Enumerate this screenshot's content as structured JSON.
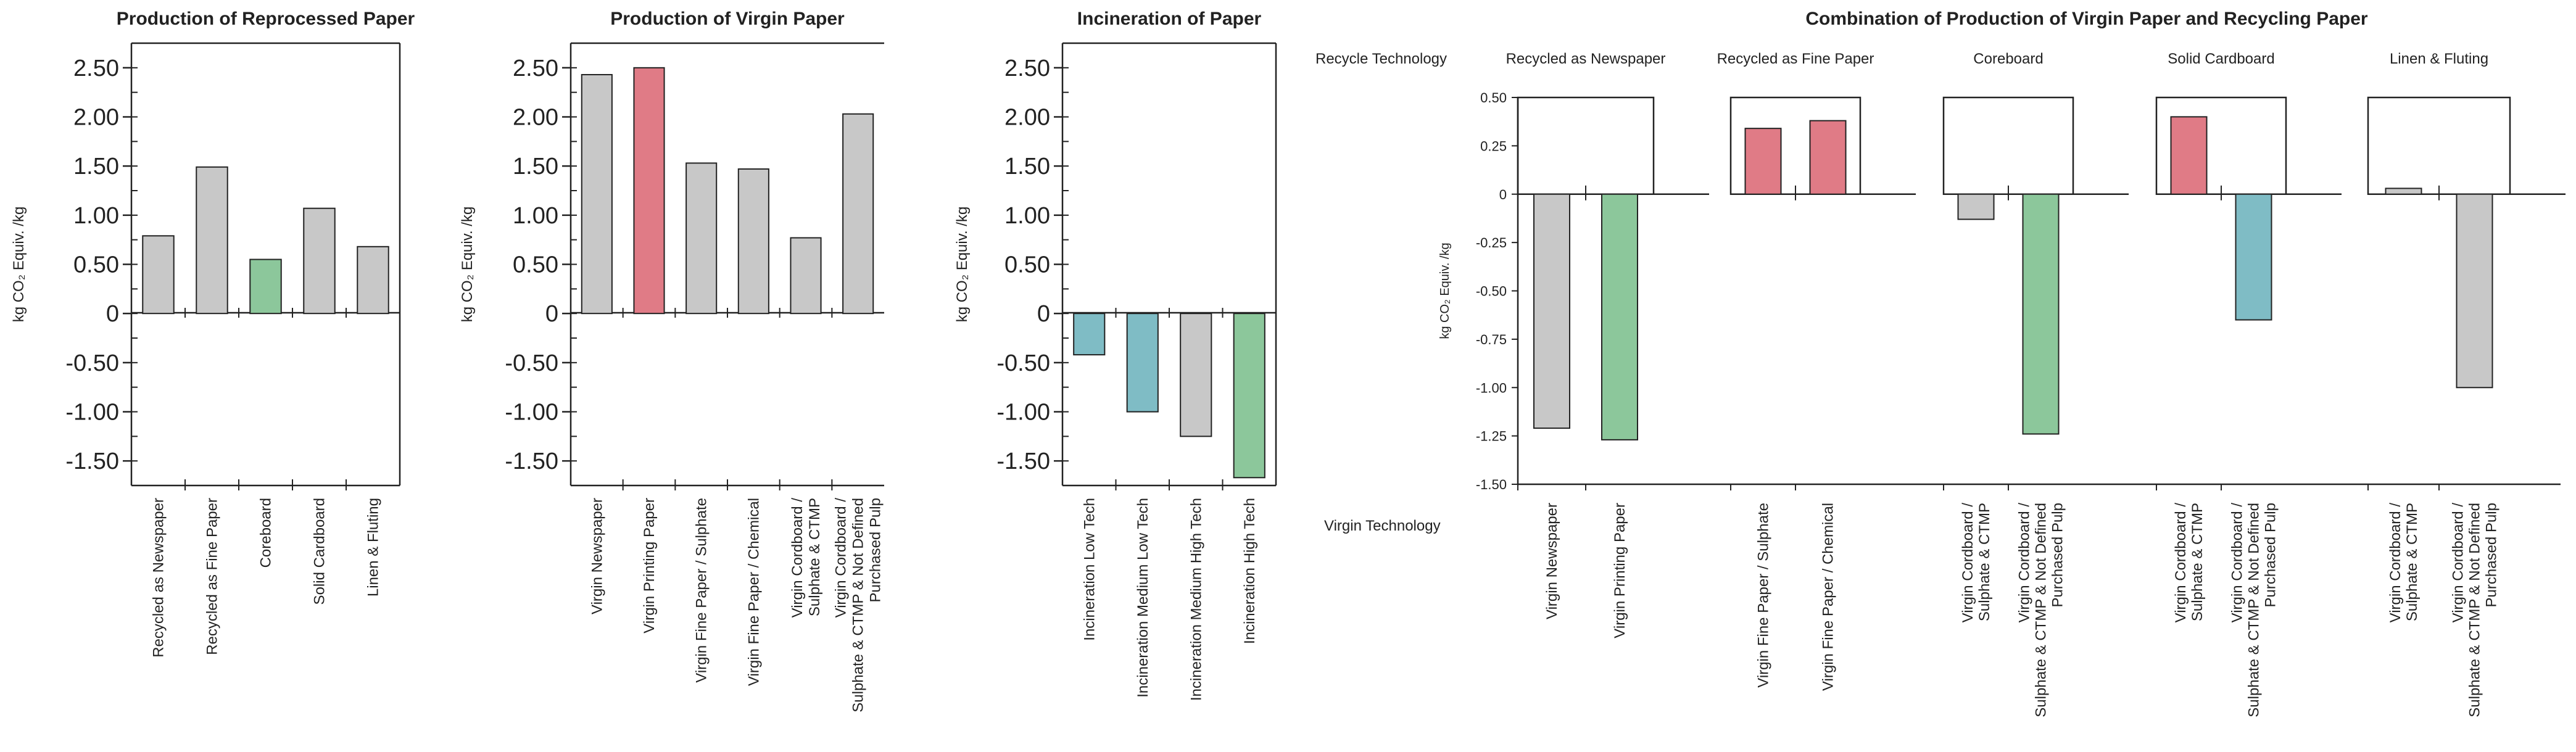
{
  "palette": {
    "grey": "#c8c8c8",
    "red": "#e07b86",
    "green": "#8cc79b",
    "blue": "#7fbcc5",
    "axis": "#222222"
  },
  "chart_data": [
    {
      "type": "bar",
      "title": "Production of Reprocessed Paper",
      "ylabel": "kg CO₂ Equiv. /kg",
      "ylim": [
        -1.75,
        2.75
      ],
      "yticks": [
        2.5,
        2.0,
        1.5,
        1.0,
        0.5,
        0,
        -0.5,
        -1.0,
        -1.5
      ],
      "ytick_labels": [
        "2.50",
        "2.00",
        "1.50",
        "1.00",
        "0.50",
        "0",
        "-0.50",
        "-1.00",
        "-1.50"
      ],
      "categories": [
        [
          "Recycled as Newspaper"
        ],
        [
          "Recycled as Fine Paper"
        ],
        [
          "Coreboard"
        ],
        [
          "Solid Cardboard"
        ],
        [
          "Linen & Fluting"
        ]
      ],
      "values": [
        0.79,
        1.49,
        0.55,
        1.07,
        0.68
      ],
      "colors": [
        "grey",
        "grey",
        "green",
        "grey",
        "grey"
      ]
    },
    {
      "type": "bar",
      "title": "Production of Virgin Paper",
      "ylabel": "kg CO₂ Equiv. /kg",
      "ylim": [
        -1.75,
        2.75
      ],
      "yticks": [
        2.5,
        2.0,
        1.5,
        1.0,
        0.5,
        0,
        -0.5,
        -1.0,
        -1.5
      ],
      "ytick_labels": [
        "2.50",
        "2.00",
        "1.50",
        "1.00",
        "0.50",
        "0",
        "-0.50",
        "-1.00",
        "-1.50"
      ],
      "categories": [
        [
          "Virgin Newspaper"
        ],
        [
          "Virgin Printing Paper"
        ],
        [
          "Virgin Fine Paper / Sulphate"
        ],
        [
          "Virgin Fine Paper / Chemical"
        ],
        [
          "Virgin Cordboard /",
          "Sulphate & CTMP"
        ],
        [
          "Virgin Cordboard /",
          "Sulphate & CTMP & Not Defined",
          "Purchased Pulp"
        ]
      ],
      "values": [
        2.43,
        2.5,
        1.53,
        1.47,
        0.77,
        2.03
      ],
      "colors": [
        "grey",
        "red",
        "grey",
        "grey",
        "grey",
        "grey"
      ]
    },
    {
      "type": "bar",
      "title": "Incineration of Paper",
      "ylabel": "kg CO₂ Equiv. /kg",
      "ylim": [
        -1.75,
        2.75
      ],
      "yticks": [
        2.5,
        2.0,
        1.5,
        1.0,
        0.5,
        0,
        -0.5,
        -1.0,
        -1.5
      ],
      "ytick_labels": [
        "2.50",
        "2.00",
        "1.50",
        "1.00",
        "0.50",
        "0",
        "-0.50",
        "-1.00",
        "-1.50"
      ],
      "categories": [
        [
          "Incineration Low Tech"
        ],
        [
          "Incineration Medium Low Tech"
        ],
        [
          "Incineration Medium High Tech"
        ],
        [
          "Incineration High Tech"
        ]
      ],
      "values": [
        -0.42,
        -1.0,
        -1.25,
        -1.67
      ],
      "colors": [
        "blue",
        "blue",
        "grey",
        "green"
      ]
    },
    {
      "type": "bar",
      "title": "Combination of Production of Virgin Paper and Recycling Paper",
      "ylabel": "kg CO₂ Equiv. /kg",
      "side_labels": {
        "top": "Recycle Technology",
        "bottom": "Virgin Technology"
      },
      "ylim": [
        -1.5,
        0.5
      ],
      "yticks": [
        0.5,
        0.25,
        0,
        -0.25,
        -0.5,
        -0.75,
        -1.0,
        -1.25,
        -1.5
      ],
      "ytick_labels": [
        "0.50",
        "0.25",
        "0",
        "-0.25",
        "-0.50",
        "-0.75",
        "-1.00",
        "-1.25",
        "-1.50"
      ],
      "groups": [
        {
          "name": "Recycled as Newspaper",
          "categories": [
            [
              "Virgin Newspaper"
            ],
            [
              "Virgin Printing Paper"
            ]
          ],
          "values": [
            -1.21,
            -1.27
          ],
          "colors": [
            "grey",
            "green"
          ]
        },
        {
          "name": "Recycled as Fine Paper",
          "categories": [
            [
              "Virgin Fine Paper / Sulphate"
            ],
            [
              "Virgin Fine Paper / Chemical"
            ]
          ],
          "values": [
            0.34,
            0.38
          ],
          "colors": [
            "red",
            "red"
          ]
        },
        {
          "name": "Coreboard",
          "categories": [
            [
              "Virgin Cordboard /",
              "Sulphate & CTMP"
            ],
            [
              "Virgin Cordboard /",
              "Sulphate & CTMP & Not Defined",
              "Purchased Pulp"
            ]
          ],
          "values": [
            -0.13,
            -1.24
          ],
          "colors": [
            "grey",
            "green"
          ]
        },
        {
          "name": "Solid Cardboard",
          "categories": [
            [
              "Virgin Cordboard /",
              "Sulphate & CTMP"
            ],
            [
              "Virgin Cordboard /",
              "Sulphate & CTMP & Not Defined",
              "Purchased Pulp"
            ]
          ],
          "values": [
            0.4,
            -0.65
          ],
          "colors": [
            "red",
            "blue"
          ]
        },
        {
          "name": "Linen & Fluting",
          "categories": [
            [
              "Virgin Cordboard /",
              "Sulphate & CTMP"
            ],
            [
              "Virgin Cordboard /",
              "Sulphate & CTMP & Not Defined",
              "Purchased Pulp"
            ]
          ],
          "values": [
            0.03,
            -1.0
          ],
          "colors": [
            "grey",
            "grey"
          ]
        }
      ]
    }
  ]
}
